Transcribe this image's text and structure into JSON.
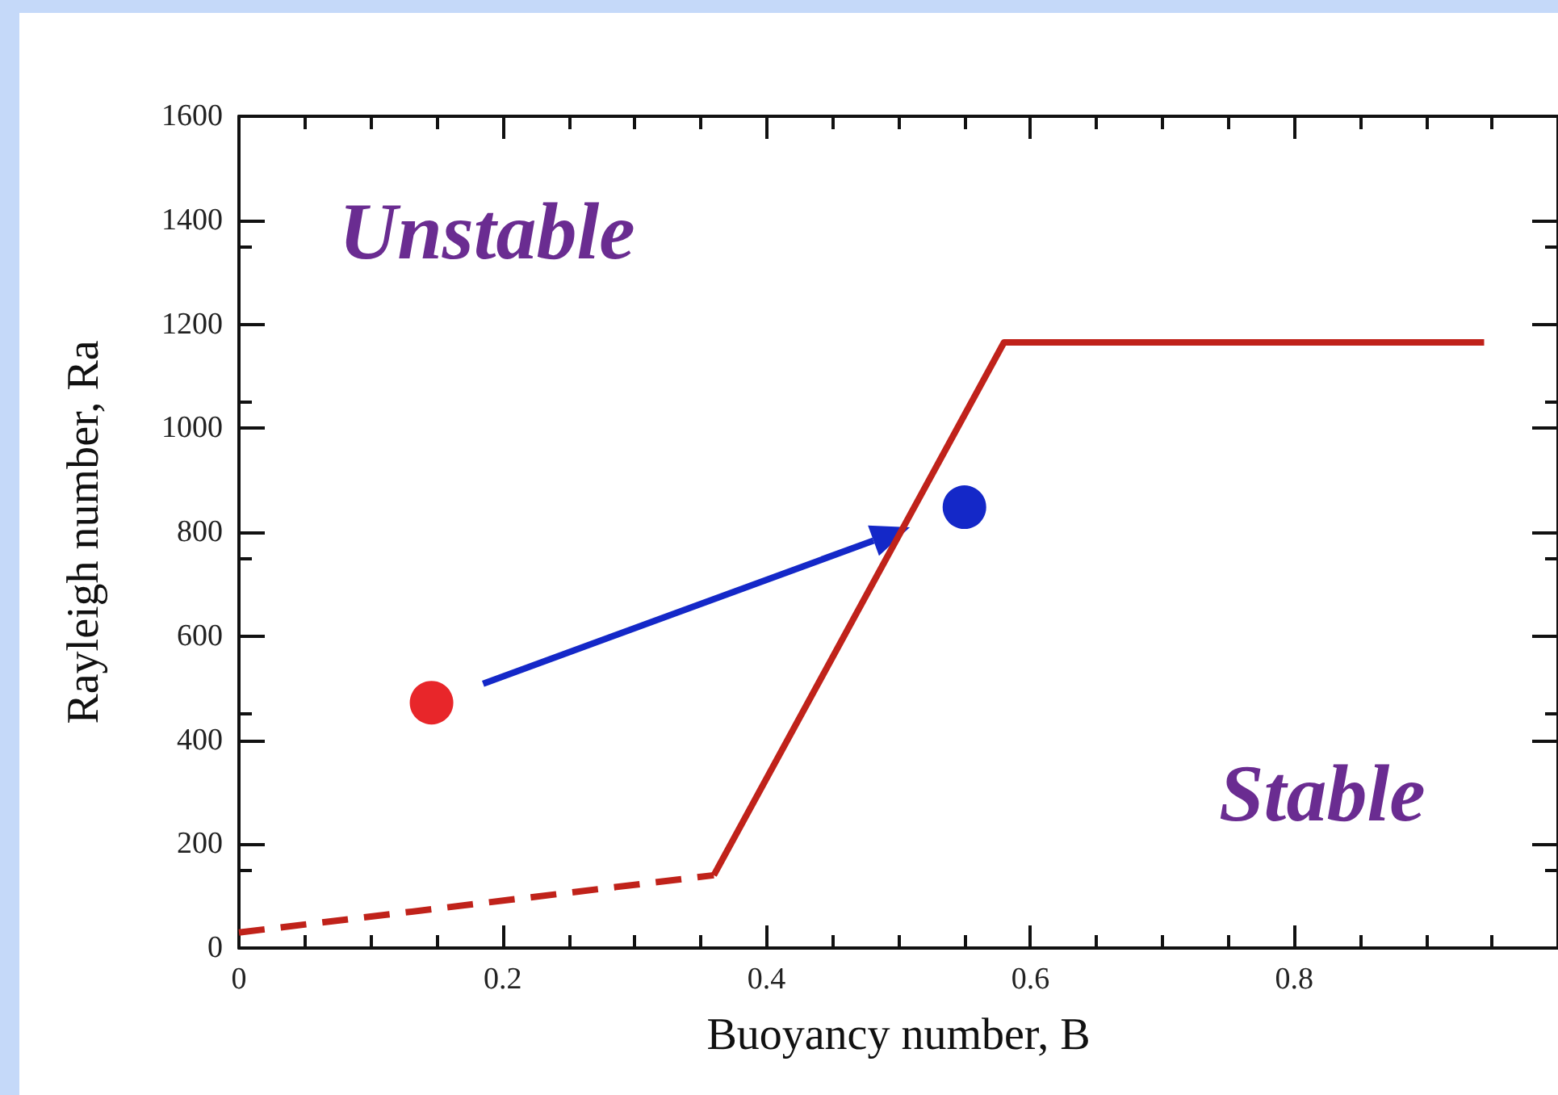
{
  "chart_data": {
    "type": "line",
    "xlabel": "Buoyancy number, B",
    "ylabel": "Rayleigh number, Ra",
    "xlim": [
      0,
      1
    ],
    "xticks": [
      0,
      0.2,
      0.4,
      0.6,
      0.8
    ],
    "ylim": [
      0,
      1600
    ],
    "yticks": [
      0,
      200,
      400,
      600,
      800,
      1000,
      1200,
      1400,
      1600
    ],
    "grid": false,
    "annotations": [
      "Unstable",
      "Stable"
    ],
    "series": [
      {
        "color": "#c0221a",
        "line_style": "dashed",
        "marker": "none",
        "x": [
          0,
          0.36
        ],
        "values": [
          30,
          140
        ]
      },
      {
        "color": "#c0221a",
        "line_style": "solid",
        "marker": "none",
        "x": [
          0.36,
          0.58,
          0.944
        ],
        "values": [
          140,
          1165,
          1165
        ]
      },
      {
        "type": "scatter",
        "color": "#e8262a",
        "marker": "circle",
        "x": [
          0.146
        ],
        "values": [
          472
        ]
      },
      {
        "type": "scatter",
        "color": "#1428c8",
        "marker": "circle",
        "x": [
          0.55
        ],
        "values": [
          848
        ]
      }
    ]
  }
}
